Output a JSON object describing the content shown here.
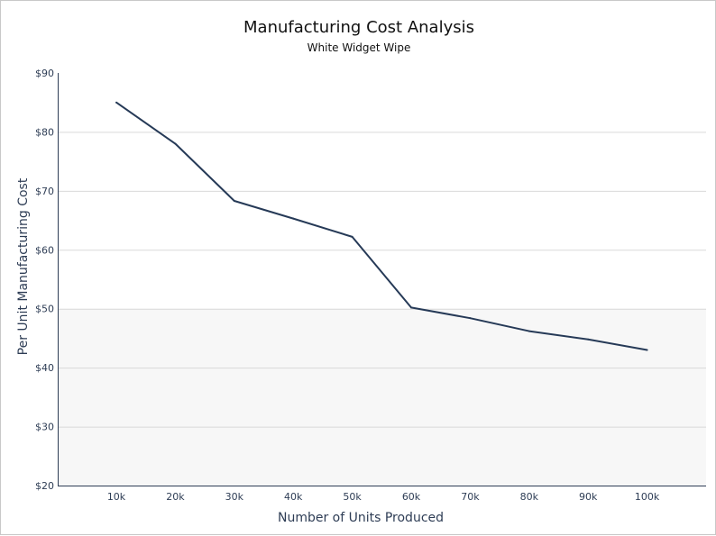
{
  "chart_data": {
    "type": "line",
    "title": "Manufacturing Cost Analysis",
    "subtitle": "White Widget Wipe",
    "xlabel": "Number of Units Produced",
    "ylabel": "Per Unit Manufacturing Cost",
    "categories": [
      "10k",
      "20k",
      "30k",
      "40k",
      "50k",
      "60k",
      "70k",
      "80k",
      "90k",
      "100k"
    ],
    "series": [
      {
        "values": [
          85,
          78,
          68.3,
          65.3,
          62.2,
          50.2,
          48.4,
          46.2,
          44.8,
          43
        ]
      }
    ],
    "ylim": [
      20,
      90
    ],
    "yticks": [
      90,
      80,
      70,
      60,
      50,
      40,
      30,
      20
    ],
    "ytick_labels": [
      "$90",
      "$80",
      "$70",
      "$60",
      "$50",
      "$40",
      "$30",
      "$20"
    ],
    "grid": true,
    "legend": "none",
    "colors": {
      "line": "#263a57",
      "axis": "#2e3d55",
      "grid": "#d9d9d9",
      "band": "#f7f7f7"
    }
  }
}
